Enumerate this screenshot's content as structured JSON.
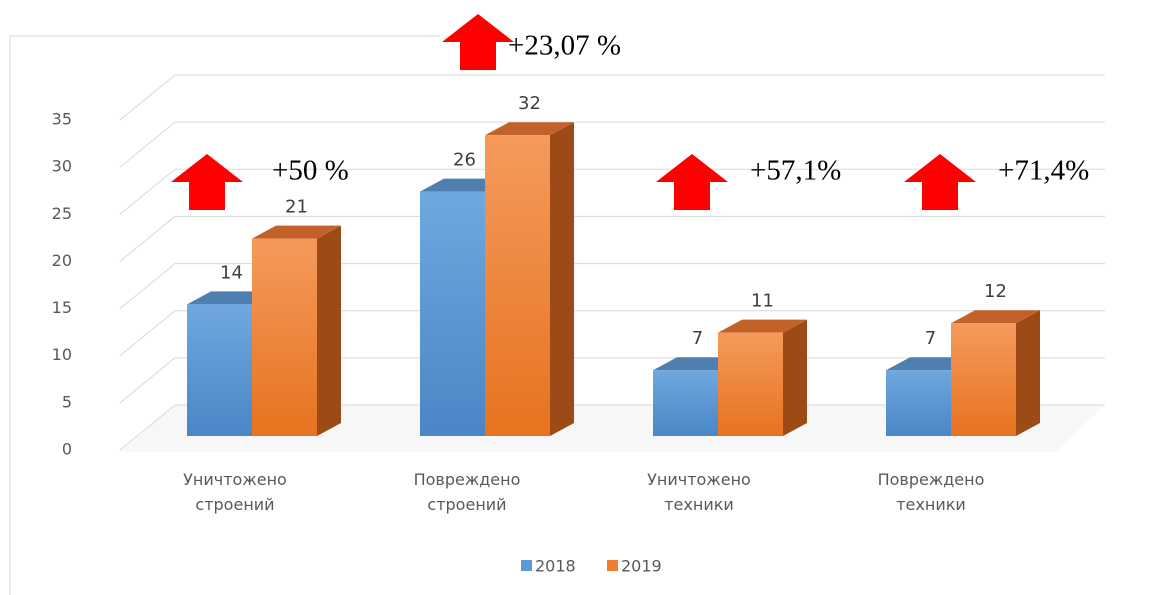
{
  "chart_data": {
    "type": "bar3d",
    "categories": [
      "Уничтожено строений",
      "Повреждено строений",
      "Уничтожено техники",
      "Повреждено техники"
    ],
    "series": [
      {
        "name": "2018",
        "color": "#5b9bd5",
        "values": [
          14,
          26,
          7,
          7
        ]
      },
      {
        "name": "2019",
        "color": "#ed7d31",
        "values": [
          21,
          32,
          11,
          12
        ]
      }
    ],
    "ylim": [
      0,
      35
    ],
    "yticks": [
      0,
      5,
      10,
      15,
      20,
      25,
      30,
      35
    ],
    "grid": true,
    "legend": "bottom",
    "annotations": [
      "+50 %",
      "+23,07 %",
      "+57,1%",
      "+71,4%"
    ]
  }
}
